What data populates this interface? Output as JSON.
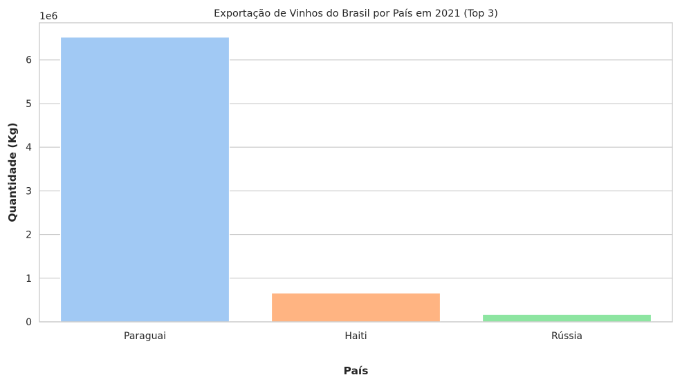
{
  "chart_data": {
    "type": "bar",
    "title": "Exportação de Vinhos do Brasil por País em 2021 (Top 3)",
    "xlabel": "País",
    "ylabel": "Quantidade (Kg)",
    "y_offset_label": "1e6",
    "categories": [
      "Paraguai",
      "Haiti",
      "Rússia"
    ],
    "values": [
      6521000,
      660000,
      170000
    ],
    "colors": [
      "#a1c9f4",
      "#ffb482",
      "#8de5a1"
    ],
    "ylim": [
      0,
      6850000
    ],
    "yticks": [
      0,
      1000000,
      2000000,
      3000000,
      4000000,
      5000000,
      6000000
    ],
    "ytick_labels": [
      "0",
      "1",
      "2",
      "3",
      "4",
      "5",
      "6"
    ],
    "grid": "horizontal",
    "style": "whitegrid"
  }
}
